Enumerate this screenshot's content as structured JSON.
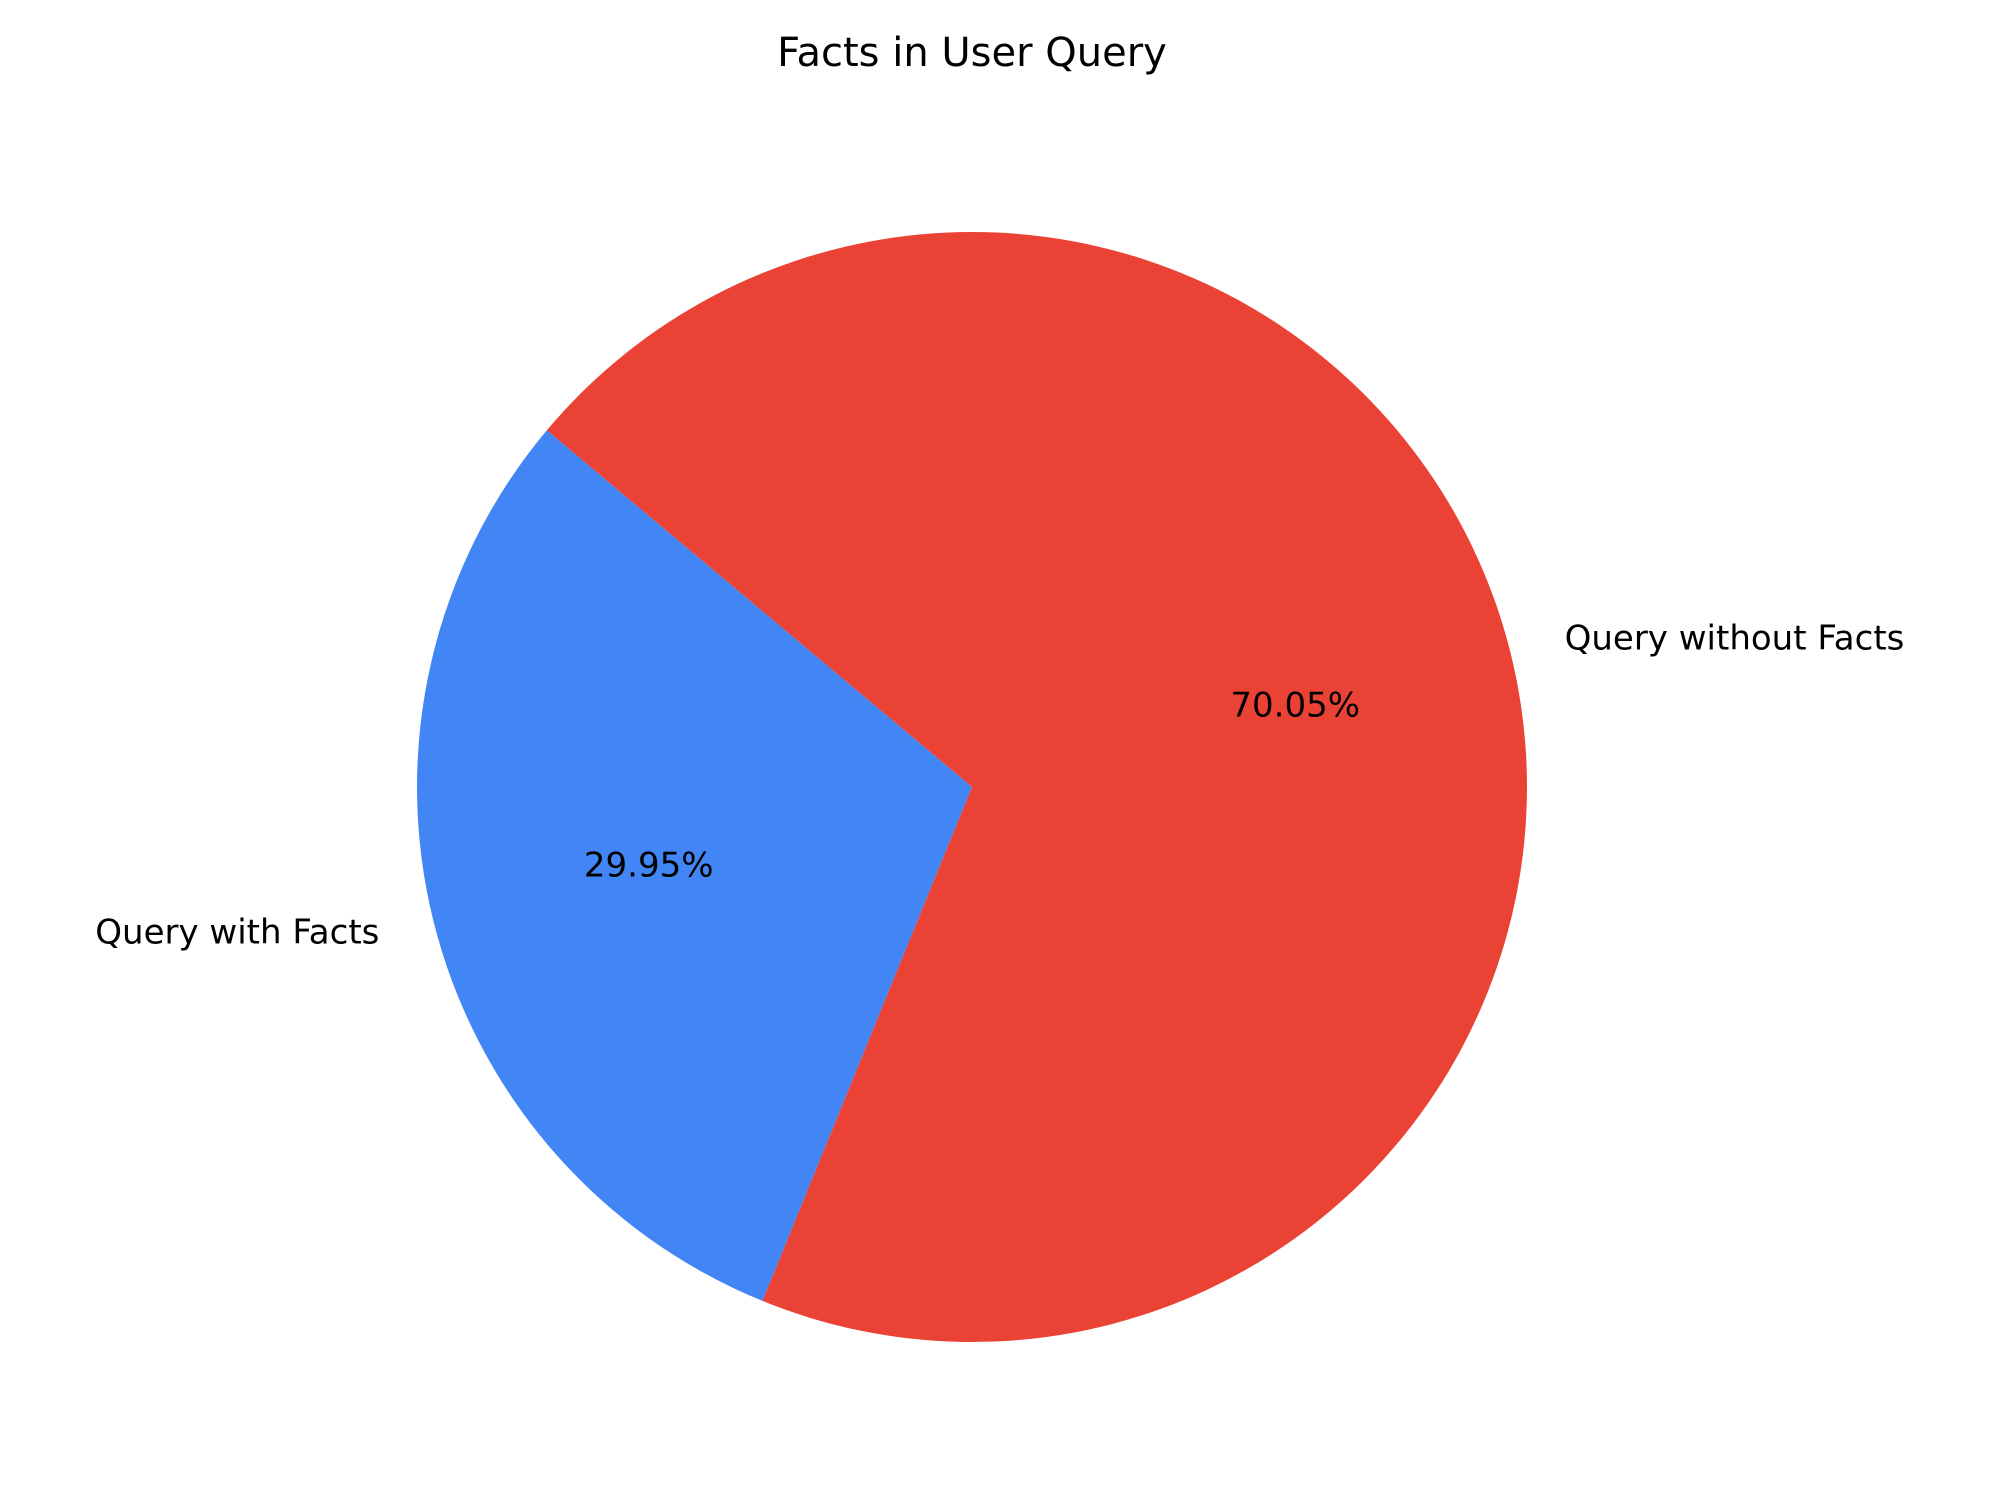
{
  "chart_data": {
    "type": "pie",
    "title": "Facts in User Query",
    "slices": [
      {
        "label": "Query with Facts",
        "value": 29.95,
        "pct_label": "29.95%",
        "color": "#4285F4"
      },
      {
        "label": "Query without Facts",
        "value": 70.05,
        "pct_label": "70.05%",
        "color": "#EA4335"
      }
    ],
    "start_angle_deg": 140,
    "direction": "counterclockwise",
    "legend": "none"
  }
}
